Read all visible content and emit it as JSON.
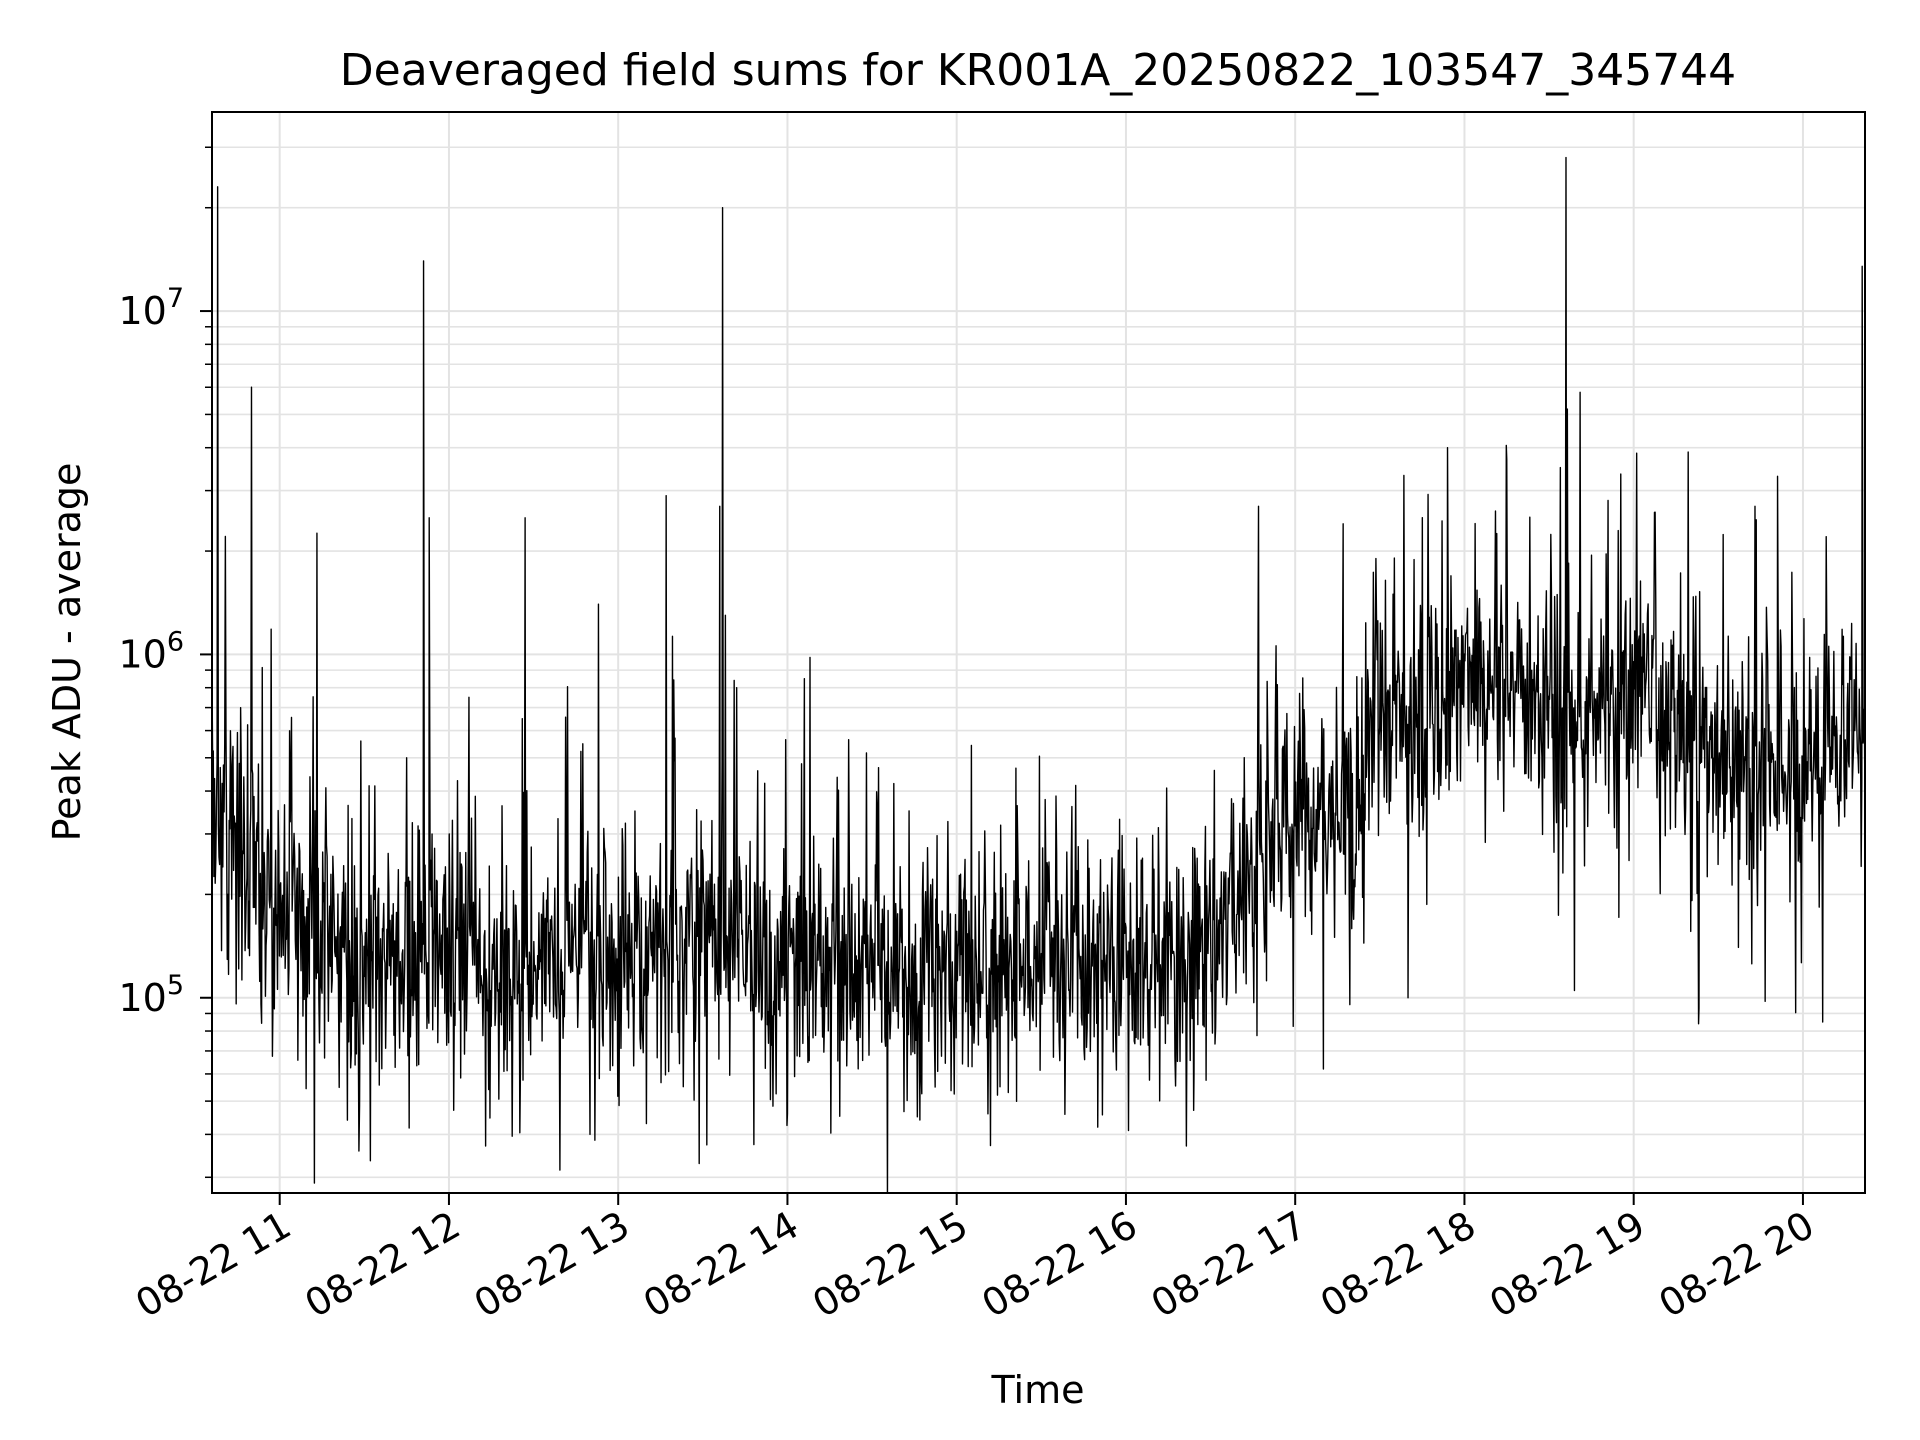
{
  "chart_data": {
    "type": "line",
    "title": "Deaveraged field sums for KR001A_20250822_103547_345744",
    "xlabel": "Time",
    "ylabel": "Peak ADU - average",
    "y_scale": "log",
    "ylim": [
      27000,
      38000000
    ],
    "xlim": [
      "2025-08-22 10:36",
      "2025-08-22 20:22"
    ],
    "x_ticks": [
      {
        "t": "2025-08-22 11:00",
        "label": "08-22 11"
      },
      {
        "t": "2025-08-22 12:00",
        "label": "08-22 12"
      },
      {
        "t": "2025-08-22 13:00",
        "label": "08-22 13"
      },
      {
        "t": "2025-08-22 14:00",
        "label": "08-22 14"
      },
      {
        "t": "2025-08-22 15:00",
        "label": "08-22 15"
      },
      {
        "t": "2025-08-22 16:00",
        "label": "08-22 16"
      },
      {
        "t": "2025-08-22 17:00",
        "label": "08-22 17"
      },
      {
        "t": "2025-08-22 18:00",
        "label": "08-22 18"
      },
      {
        "t": "2025-08-22 19:00",
        "label": "08-22 19"
      },
      {
        "t": "2025-08-22 20:00",
        "label": "08-22 20"
      }
    ],
    "y_ticks": [
      {
        "value": 100000,
        "base": "10",
        "exp": "5"
      },
      {
        "value": 1000000,
        "base": "10",
        "exp": "6"
      },
      {
        "value": 10000000,
        "base": "10",
        "exp": "7"
      }
    ],
    "grid": true,
    "series": [
      {
        "color": "#000000",
        "baseline_trend": [
          {
            "t": "2025-08-22 10:36",
            "value": 350000
          },
          {
            "t": "2025-08-22 10:50",
            "value": 240000
          },
          {
            "t": "2025-08-22 11:10",
            "value": 170000
          },
          {
            "t": "2025-08-22 11:30",
            "value": 120000
          },
          {
            "t": "2025-08-22 12:00",
            "value": 135000
          },
          {
            "t": "2025-08-22 12:30",
            "value": 130000
          },
          {
            "t": "2025-08-22 13:00",
            "value": 145000
          },
          {
            "t": "2025-08-22 13:30",
            "value": 140000
          },
          {
            "t": "2025-08-22 14:00",
            "value": 125000
          },
          {
            "t": "2025-08-22 14:30",
            "value": 120000
          },
          {
            "t": "2025-08-22 15:00",
            "value": 125000
          },
          {
            "t": "2025-08-22 15:30",
            "value": 125000
          },
          {
            "t": "2025-08-22 16:00",
            "value": 115000
          },
          {
            "t": "2025-08-22 16:30",
            "value": 140000
          },
          {
            "t": "2025-08-22 16:45",
            "value": 240000
          },
          {
            "t": "2025-08-22 17:00",
            "value": 350000
          },
          {
            "t": "2025-08-22 17:20",
            "value": 350000
          },
          {
            "t": "2025-08-22 17:30",
            "value": 600000
          },
          {
            "t": "2025-08-22 18:00",
            "value": 900000
          },
          {
            "t": "2025-08-22 18:30",
            "value": 750000
          },
          {
            "t": "2025-08-22 19:00",
            "value": 750000
          },
          {
            "t": "2025-08-22 19:30",
            "value": 500000
          },
          {
            "t": "2025-08-22 20:00",
            "value": 450000
          },
          {
            "t": "2025-08-22 20:22",
            "value": 700000
          }
        ],
        "spikes": [
          {
            "t": "2025-08-22 10:38",
            "value": 23000000
          },
          {
            "t": "2025-08-22 10:50",
            "value": 6000000
          },
          {
            "t": "2025-08-22 11:45",
            "value": 500000
          },
          {
            "t": "2025-08-22 11:51",
            "value": 14000000
          },
          {
            "t": "2025-08-22 11:53",
            "value": 2500000
          },
          {
            "t": "2025-08-22 12:26",
            "value": 650000
          },
          {
            "t": "2025-08-22 12:27",
            "value": 450000
          },
          {
            "t": "2025-08-22 12:27",
            "value": 2500000
          },
          {
            "t": "2025-08-22 12:53",
            "value": 1400000
          },
          {
            "t": "2025-08-22 13:17",
            "value": 2900000
          },
          {
            "t": "2025-08-22 13:36",
            "value": 2700000
          },
          {
            "t": "2025-08-22 13:37",
            "value": 20000000
          },
          {
            "t": "2025-08-22 13:38",
            "value": 1300000
          },
          {
            "t": "2025-08-22 13:42",
            "value": 800000
          },
          {
            "t": "2025-08-22 14:05",
            "value": 480000
          },
          {
            "t": "2025-08-22 14:06",
            "value": 850000
          },
          {
            "t": "2025-08-22 14:08",
            "value": 980000
          },
          {
            "t": "2025-08-22 16:47",
            "value": 2700000
          },
          {
            "t": "2025-08-22 17:17",
            "value": 2400000
          },
          {
            "t": "2025-08-22 17:54",
            "value": 4000000
          },
          {
            "t": "2025-08-22 18:15",
            "value": 3700000
          },
          {
            "t": "2025-08-22 18:34",
            "value": 3500000
          },
          {
            "t": "2025-08-22 18:36",
            "value": 28000000
          },
          {
            "t": "2025-08-22 18:41",
            "value": 5800000
          },
          {
            "t": "2025-08-22 19:43",
            "value": 2700000
          },
          {
            "t": "2025-08-22 19:51",
            "value": 3300000
          },
          {
            "t": "2025-08-22 20:21",
            "value": 13500000
          }
        ],
        "dips": [
          {
            "t": "2025-08-22 11:24",
            "value": 44000
          },
          {
            "t": "2025-08-22 12:13",
            "value": 37000
          },
          {
            "t": "2025-08-22 12:50",
            "value": 40000
          },
          {
            "t": "2025-08-22 13:10",
            "value": 43000
          },
          {
            "t": "2025-08-22 14:00",
            "value": 46000
          },
          {
            "t": "2025-08-22 15:50",
            "value": 42000
          },
          {
            "t": "2025-08-22 16:24",
            "value": 47000
          },
          {
            "t": "2025-08-22 17:10",
            "value": 62000
          },
          {
            "t": "2025-08-22 17:40",
            "value": 100000
          },
          {
            "t": "2025-08-22 18:39",
            "value": 105000
          },
          {
            "t": "2025-08-22 19:23",
            "value": 84000
          },
          {
            "t": "2025-08-22 20:07",
            "value": 85000
          }
        ]
      }
    ]
  }
}
